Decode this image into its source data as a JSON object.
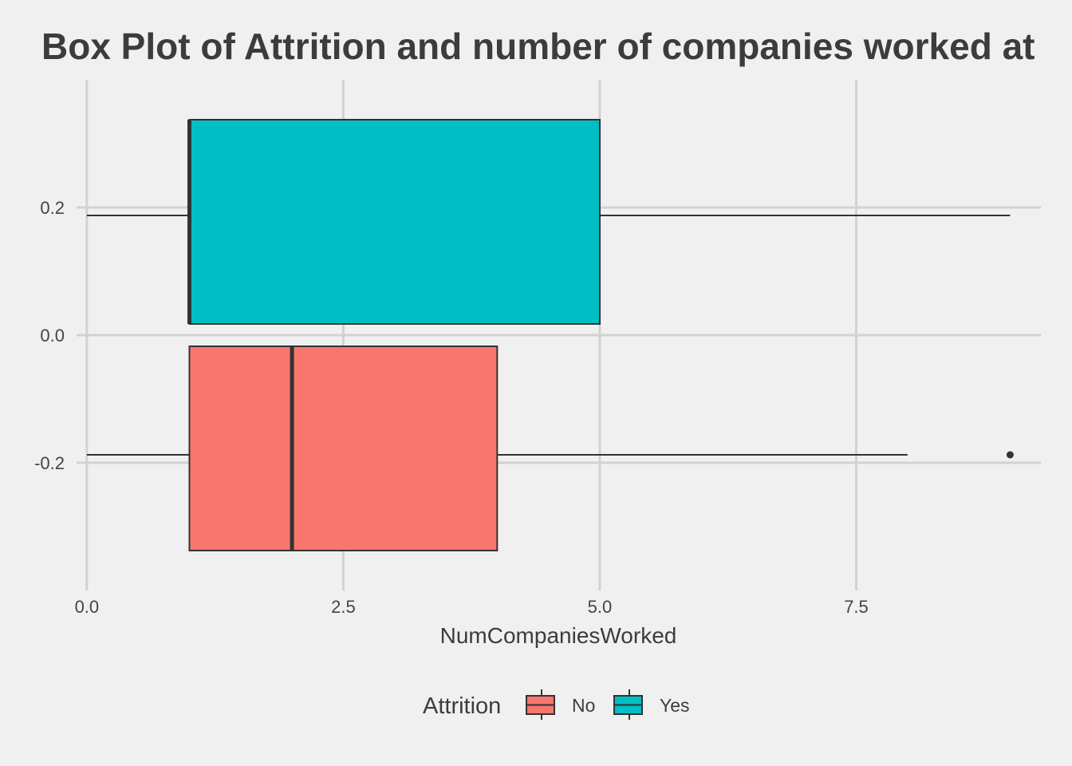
{
  "chart_data": {
    "type": "boxplot",
    "orientation": "horizontal",
    "title": "Box Plot of Attrition and number of companies worked at",
    "xlabel": "NumCompaniesWorked",
    "ylabel": "",
    "xlim": [
      -0.1,
      9.3
    ],
    "ylim": [
      -0.4,
      0.4
    ],
    "x_ticks": [
      0.0,
      2.5,
      5.0,
      7.5
    ],
    "x_tick_labels": [
      "0.0",
      "2.5",
      "5.0",
      "7.5"
    ],
    "y_ticks": [
      -0.2,
      0.0,
      0.2
    ],
    "y_tick_labels": [
      "-0.2",
      "0.0",
      "0.2"
    ],
    "grid": true,
    "legend": {
      "title": "Attrition",
      "placement": "bottom",
      "entries": [
        {
          "label": "No",
          "color": "#f8766d"
        },
        {
          "label": "Yes",
          "color": "#00bfc4"
        }
      ]
    },
    "series": [
      {
        "name": "No",
        "color": "#f8766d",
        "y_center": -0.1875,
        "y_range": [
          -0.3375,
          -0.0175
        ],
        "whisker_low": 0,
        "q1": 1,
        "median": 2,
        "q3": 4,
        "whisker_high": 8,
        "outliers": [
          9
        ]
      },
      {
        "name": "Yes",
        "color": "#00bfc4",
        "y_center": 0.1875,
        "y_range": [
          0.0175,
          0.3375
        ],
        "whisker_low": 0,
        "q1": 1,
        "median": 1,
        "q3": 5,
        "whisker_high": 9,
        "outliers": []
      }
    ]
  }
}
